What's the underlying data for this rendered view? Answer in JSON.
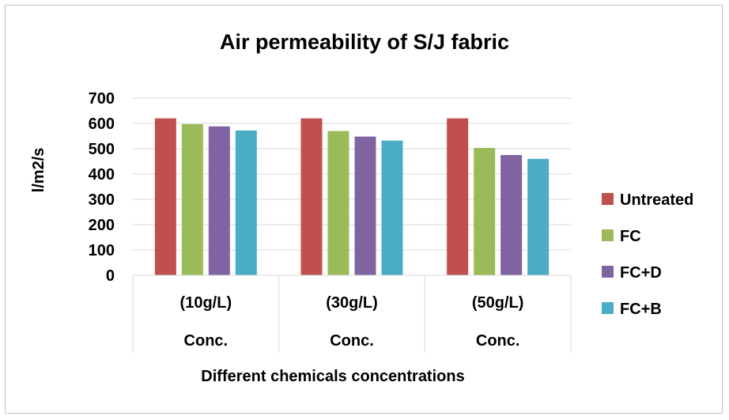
{
  "chart_data": {
    "type": "bar",
    "title": "Air permeability of S/J fabric",
    "xlabel": "Different chemicals concentrations",
    "ylabel": "l/m2/s",
    "ylim": [
      0,
      700
    ],
    "yticks": [
      "0",
      "100",
      "200",
      "300",
      "400",
      "500",
      "600",
      "700"
    ],
    "grid": true,
    "legend_position": "right",
    "categories": [
      "(10g/L)",
      "(30g/L)",
      "(50g/L)"
    ],
    "category_group_label": "Conc.",
    "series": [
      {
        "name": "Untreated",
        "color": "#c0504d",
        "values": [
          620,
          620,
          620
        ]
      },
      {
        "name": "FC",
        "color": "#9bbb59",
        "values": [
          597,
          570,
          503
        ]
      },
      {
        "name": "FC+D",
        "color": "#8064a2",
        "values": [
          588,
          548,
          475
        ]
      },
      {
        "name": "FC+B",
        "color": "#4bacc6",
        "values": [
          572,
          532,
          460
        ]
      }
    ]
  }
}
